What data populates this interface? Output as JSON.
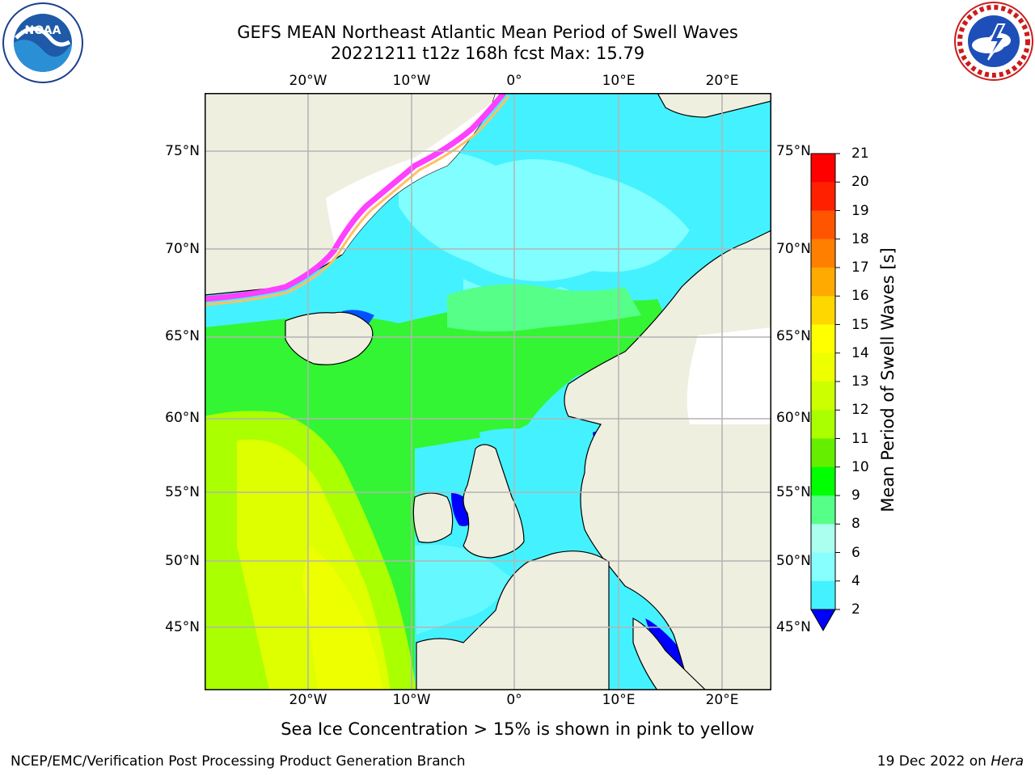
{
  "title_line1": "GEFS MEAN Northeast Atlantic Mean Period of Swell Waves",
  "title_line2": "20221211 t12z 168h fcst   Max: 15.79",
  "caption": "Sea Ice Concentration > 15% is shown in pink to yellow",
  "footer_left": "NCEP/EMC/Verification Post Processing Product Generation Branch",
  "footer_date": "19 Dec 2022 on",
  "footer_host": "Hera",
  "logos": {
    "left": {
      "icon": "noaa-logo",
      "text": "NOAA",
      "ring": "NATIONAL OCEANIC AND ATMOSPHERIC ADMINISTRATION · U.S. DEPARTMENT OF COMMERCE"
    },
    "right": {
      "icon": "nws-logo",
      "ring": "NATIONAL WEATHER SERVICE"
    }
  },
  "map": {
    "lon_labels": [
      "20°W",
      "10°W",
      "0°",
      "10°E",
      "20°E"
    ],
    "lat_labels_left": [
      "75°N",
      "70°N",
      "65°N",
      "60°N",
      "55°N",
      "50°N",
      "45°N"
    ],
    "lat_labels_right": [
      "75°N",
      "70°N",
      "65°N",
      "60°N",
      "55°N",
      "50°N",
      "45°N"
    ],
    "land_color": "#efefe0",
    "ice_colors": [
      "#ff40ff",
      "#ff80c0",
      "#ffc060",
      "#ffff00"
    ]
  },
  "colorbar": {
    "label": "Mean Period of Swell Waves [s]",
    "ticks": [
      "2",
      "4",
      "6",
      "8",
      "9",
      "10",
      "11",
      "12",
      "13",
      "14",
      "15",
      "16",
      "17",
      "18",
      "19",
      "20",
      "21"
    ],
    "colors": [
      "#0050ff",
      "#00e5ff",
      "#44f2ff",
      "#88ffff",
      "#aaffee",
      "#55ff88",
      "#00ff00",
      "#66ee00",
      "#aaff00",
      "#ccff00",
      "#eeff00",
      "#ffff00",
      "#ffd700",
      "#ffaa00",
      "#ff8000",
      "#ff5500",
      "#ff2000",
      "#ff0000"
    ],
    "under_color": "#0000ff"
  }
}
